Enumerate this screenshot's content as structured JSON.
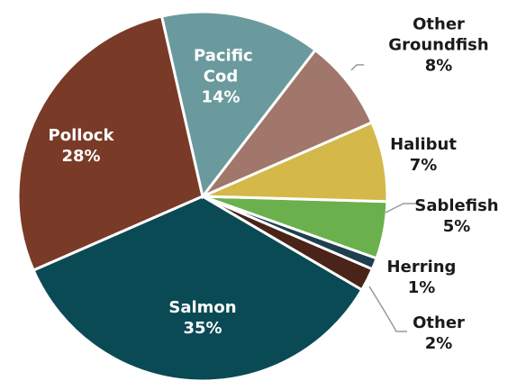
{
  "chart_data": {
    "type": "pie",
    "categories": [
      "Pacific Cod",
      "Other Groundfish",
      "Halibut",
      "Sablefish",
      "Herring",
      "Other",
      "Salmon",
      "Pollock"
    ],
    "values": [
      14,
      8,
      7,
      5,
      1,
      2,
      35,
      28
    ],
    "value_labels": [
      "14%",
      "8%",
      "7%",
      "5%",
      "1%",
      "2%",
      "35%",
      "28%"
    ],
    "colors": [
      "#6a9a9e",
      "#a0776a",
      "#d4b84a",
      "#6ab04c",
      "#1e3f4f",
      "#4a2418",
      "#0a4a55",
      "#7a3a28"
    ]
  }
}
